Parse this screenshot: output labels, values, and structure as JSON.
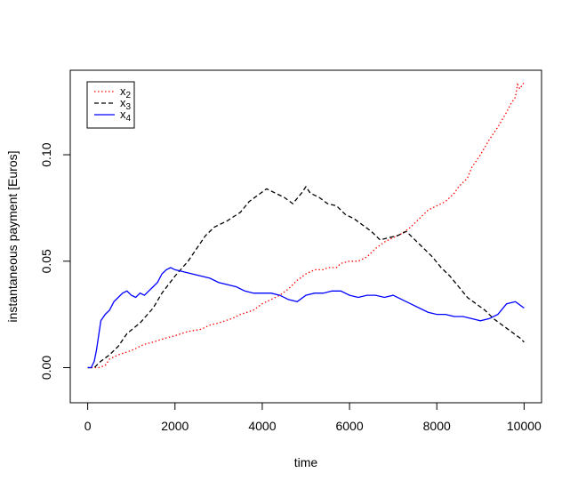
{
  "chart_data": {
    "type": "line",
    "title": "",
    "xlabel": "time",
    "ylabel": "instantaneous payment [Euros]",
    "xlim": [
      -400,
      10400
    ],
    "ylim": [
      -0.0165,
      0.1397
    ],
    "x_ticks": [
      0,
      2000,
      4000,
      6000,
      8000,
      10000
    ],
    "x_tick_labels": [
      "0",
      "2000",
      "4000",
      "6000",
      "8000",
      "10000"
    ],
    "y_ticks": [
      0.0,
      0.05,
      0.1
    ],
    "y_tick_labels": [
      "0.00",
      "0.05",
      "0.10"
    ],
    "legend_position": "top-left",
    "grid": false,
    "series": [
      {
        "name": "x",
        "subscript": "2",
        "color": "#ff0000",
        "style": "dotted",
        "x": [
          0,
          250,
          400,
          500,
          700,
          1000,
          1300,
          1500,
          1800,
          2000,
          2300,
          2600,
          2800,
          3000,
          3300,
          3500,
          3800,
          4000,
          4200,
          4400,
          4600,
          4800,
          5000,
          5200,
          5400,
          5500,
          5700,
          5800,
          6000,
          6200,
          6400,
          6600,
          6800,
          7000,
          7200,
          7400,
          7600,
          7800,
          8000,
          8200,
          8400,
          8500,
          8700,
          8800,
          9000,
          9200,
          9400,
          9600,
          9700,
          9800,
          9850,
          9900,
          10000
        ],
        "values": [
          0.0,
          0.0,
          0.001,
          0.004,
          0.006,
          0.008,
          0.011,
          0.012,
          0.014,
          0.015,
          0.017,
          0.018,
          0.02,
          0.021,
          0.023,
          0.025,
          0.027,
          0.03,
          0.032,
          0.034,
          0.037,
          0.041,
          0.044,
          0.046,
          0.046,
          0.047,
          0.047,
          0.049,
          0.05,
          0.05,
          0.052,
          0.056,
          0.059,
          0.061,
          0.063,
          0.066,
          0.07,
          0.074,
          0.076,
          0.078,
          0.082,
          0.085,
          0.089,
          0.094,
          0.1,
          0.107,
          0.113,
          0.12,
          0.124,
          0.127,
          0.133,
          0.131,
          0.134
        ]
      },
      {
        "name": "x",
        "subscript": "3",
        "color": "#000000",
        "style": "dashed",
        "x": [
          0,
          150,
          300,
          500,
          700,
          900,
          1200,
          1500,
          1700,
          2000,
          2300,
          2500,
          2700,
          2900,
          3200,
          3500,
          3700,
          3900,
          4100,
          4300,
          4500,
          4700,
          4900,
          5000,
          5100,
          5300,
          5500,
          5700,
          5900,
          6100,
          6300,
          6500,
          6700,
          6900,
          7100,
          7300,
          7500,
          7700,
          7900,
          8100,
          8300,
          8500,
          8700,
          8900,
          9100,
          9300,
          9500,
          9700,
          9900,
          10000
        ],
        "values": [
          0.0,
          0.0,
          0.003,
          0.006,
          0.01,
          0.016,
          0.021,
          0.028,
          0.035,
          0.043,
          0.05,
          0.056,
          0.062,
          0.066,
          0.069,
          0.073,
          0.078,
          0.081,
          0.084,
          0.082,
          0.08,
          0.077,
          0.082,
          0.085,
          0.082,
          0.08,
          0.077,
          0.076,
          0.072,
          0.07,
          0.067,
          0.064,
          0.06,
          0.061,
          0.062,
          0.064,
          0.06,
          0.056,
          0.052,
          0.047,
          0.043,
          0.038,
          0.033,
          0.03,
          0.027,
          0.023,
          0.02,
          0.017,
          0.014,
          0.012
        ]
      },
      {
        "name": "x",
        "subscript": "4",
        "color": "#0000ff",
        "style": "solid",
        "x": [
          0,
          80,
          150,
          200,
          250,
          300,
          400,
          500,
          600,
          700,
          800,
          900,
          1000,
          1100,
          1200,
          1300,
          1400,
          1500,
          1600,
          1700,
          1800,
          1900,
          2000,
          2200,
          2400,
          2600,
          2800,
          3000,
          3200,
          3400,
          3600,
          3800,
          4000,
          4200,
          4400,
          4600,
          4800,
          5000,
          5200,
          5400,
          5600,
          5800,
          6000,
          6200,
          6400,
          6600,
          6800,
          7000,
          7200,
          7400,
          7600,
          7800,
          8000,
          8200,
          8400,
          8600,
          8800,
          9000,
          9200,
          9400,
          9600,
          9800,
          10000
        ],
        "values": [
          0.0,
          0.0,
          0.003,
          0.008,
          0.015,
          0.022,
          0.025,
          0.027,
          0.031,
          0.033,
          0.035,
          0.036,
          0.034,
          0.033,
          0.035,
          0.034,
          0.036,
          0.038,
          0.04,
          0.044,
          0.046,
          0.047,
          0.046,
          0.045,
          0.044,
          0.043,
          0.042,
          0.04,
          0.039,
          0.038,
          0.036,
          0.035,
          0.035,
          0.035,
          0.034,
          0.032,
          0.031,
          0.034,
          0.035,
          0.035,
          0.036,
          0.036,
          0.034,
          0.033,
          0.034,
          0.034,
          0.033,
          0.034,
          0.032,
          0.03,
          0.028,
          0.026,
          0.025,
          0.025,
          0.024,
          0.024,
          0.023,
          0.022,
          0.023,
          0.025,
          0.03,
          0.031,
          0.028
        ]
      }
    ]
  }
}
